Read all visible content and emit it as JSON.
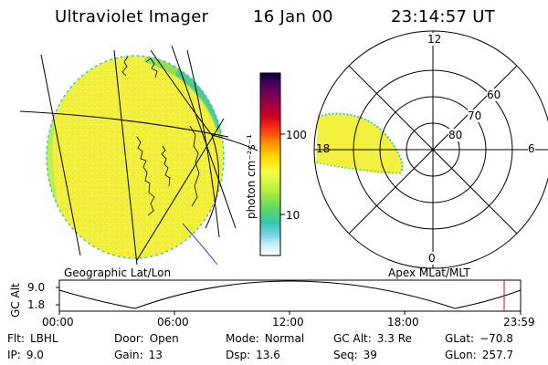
{
  "header": {
    "instrument": "Ultraviolet Imager",
    "date": "16 Jan 00",
    "time": "23:14:57 UT"
  },
  "geo_panel": {
    "label": "Geographic Lat/Lon"
  },
  "polar_panel": {
    "label": "Apex MLat/MLT",
    "mlt_labels": {
      "top": "12",
      "left": "18",
      "right": "6",
      "bottom": "0"
    },
    "lat_labels": [
      "60",
      "70",
      "80"
    ]
  },
  "colorbar": {
    "unit_label": "photon cm⁻²s⁻¹",
    "ticks": [
      "100",
      "10"
    ],
    "colors": [
      "#000030",
      "#5a005a",
      "#8a0050",
      "#c00030",
      "#ff2010",
      "#ff8000",
      "#ffd000",
      "#ffff40",
      "#d8ff30",
      "#90e840",
      "#50d070",
      "#30c0c0",
      "#80d8e0",
      "#d0f0f8",
      "#ffffff"
    ]
  },
  "altitude_strip": {
    "axis_label": "GC Alt",
    "ticks": [
      "9.0",
      "1.8"
    ],
    "time_labels": [
      "00:00",
      "06:00",
      "12:00",
      "18:00",
      "23:59"
    ],
    "marker_color": "#c01818"
  },
  "footer": {
    "flt": {
      "key": "Flt:",
      "value": "LBHL"
    },
    "ip": {
      "key": "IP:",
      "value": "9.0"
    },
    "door": {
      "key": "Door:",
      "value": "Open"
    },
    "gain": {
      "key": "Gain:",
      "value": "13"
    },
    "mode": {
      "key": "Mode:",
      "value": "Normal"
    },
    "dsp": {
      "key": "Dsp:",
      "value": "13.6"
    },
    "gcalt": {
      "key": "GC Alt:",
      "value": "3.3 Re"
    },
    "seq": {
      "key": "Seq:",
      "value": "39"
    },
    "glat": {
      "key": "GLat:",
      "value": "−70.8"
    },
    "glon": {
      "key": "GLon:",
      "value": "257.7"
    }
  }
}
